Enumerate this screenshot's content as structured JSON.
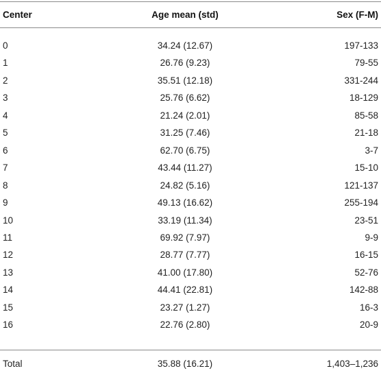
{
  "table": {
    "headers": [
      "Center",
      "Age mean (std)",
      "Sex (F-M)"
    ],
    "rows": [
      [
        "0",
        "34.24 (12.67)",
        "197-133"
      ],
      [
        "1",
        "26.76 (9.23)",
        "79-55"
      ],
      [
        "2",
        "35.51 (12.18)",
        "331-244"
      ],
      [
        "3",
        "25.76 (6.62)",
        "18-129"
      ],
      [
        "4",
        "21.24 (2.01)",
        "85-58"
      ],
      [
        "5",
        "31.25 (7.46)",
        "21-18"
      ],
      [
        "6",
        "62.70 (6.75)",
        "3-7"
      ],
      [
        "7",
        "43.44 (11.27)",
        "15-10"
      ],
      [
        "8",
        "24.82 (5.16)",
        "121-137"
      ],
      [
        "9",
        "49.13 (16.62)",
        "255-194"
      ],
      [
        "10",
        "33.19 (11.34)",
        "23-51"
      ],
      [
        "11",
        "69.92 (7.97)",
        "9-9"
      ],
      [
        "12",
        "28.77 (7.77)",
        "16-15"
      ],
      [
        "13",
        "41.00 (17.80)",
        "52-76"
      ],
      [
        "14",
        "44.41 (22.81)",
        "142-88"
      ],
      [
        "15",
        "23.27 (1.27)",
        "16-3"
      ],
      [
        "16",
        "22.76 (2.80)",
        "20-9"
      ]
    ],
    "total": [
      "Total",
      "35.88 (16.21)",
      "1,403–1,236"
    ]
  }
}
